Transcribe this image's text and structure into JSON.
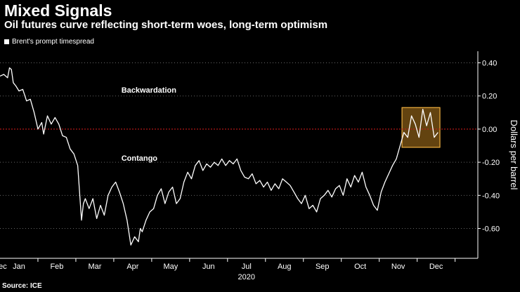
{
  "header": {
    "title": "Mixed Signals",
    "subtitle": "Oil futures curve reflecting short-term woes, long-term optimism"
  },
  "legend": {
    "label": "Brent's prompt timespread"
  },
  "source": "Source: ICE",
  "colors": {
    "line": "#ffffff",
    "zero_line": "#c41a1a",
    "highlight_fill": "#b57a1e",
    "highlight_stroke": "#f0b040",
    "grid": "#666666"
  },
  "chart_data": {
    "type": "line",
    "title": "Mixed Signals",
    "subtitle": "Oil futures curve reflecting short-term woes, long-term optimism",
    "xlabel": "2020",
    "ylabel": "Dollars per barrel",
    "ylim": [
      -0.78,
      0.47
    ],
    "xlim": [
      0,
      12.6
    ],
    "yticks": [
      0.4,
      0.2,
      0.0,
      -0.2,
      -0.4,
      -0.6
    ],
    "ytick_labels": [
      "0.40",
      "0.20",
      "0.00",
      "-0.20",
      "-0.40",
      "-0.60"
    ],
    "xticks": [
      0,
      0.5,
      1.5,
      2.5,
      3.5,
      4.5,
      5.5,
      6.5,
      7.5,
      8.5,
      9.5,
      10.5,
      11.5
    ],
    "xtick_labels": [
      "Dec",
      "Jan",
      "Feb",
      "Mar",
      "Apr",
      "May",
      "Jun",
      "Jul",
      "Aug",
      "Sep",
      "Oct",
      "Nov",
      "Dec"
    ],
    "year_label": "2020",
    "annotations": [
      {
        "text": "Backwardation",
        "x": 3.2,
        "y": 0.22
      },
      {
        "text": "Contango",
        "x": 3.2,
        "y": -0.19
      }
    ],
    "reference_line": {
      "y": 0.0,
      "style": "dotted"
    },
    "highlight_box": {
      "x0": 10.6,
      "x1": 11.6,
      "y0": -0.11,
      "y1": 0.13
    },
    "series": [
      {
        "name": "Brent's prompt timespread",
        "x": [
          0.0,
          0.1,
          0.2,
          0.25,
          0.3,
          0.35,
          0.42,
          0.5,
          0.6,
          0.7,
          0.8,
          0.9,
          1.0,
          1.1,
          1.15,
          1.25,
          1.35,
          1.45,
          1.55,
          1.65,
          1.75,
          1.85,
          1.95,
          2.05,
          2.15,
          2.2,
          2.25,
          2.35,
          2.45,
          2.55,
          2.65,
          2.75,
          2.85,
          2.95,
          3.05,
          3.15,
          3.25,
          3.35,
          3.45,
          3.55,
          3.65,
          3.7,
          3.75,
          3.85,
          3.95,
          4.05,
          4.15,
          4.25,
          4.35,
          4.45,
          4.55,
          4.65,
          4.75,
          4.85,
          4.95,
          5.05,
          5.15,
          5.25,
          5.35,
          5.45,
          5.55,
          5.65,
          5.75,
          5.85,
          5.95,
          6.05,
          6.15,
          6.25,
          6.35,
          6.45,
          6.55,
          6.65,
          6.75,
          6.85,
          6.95,
          7.05,
          7.15,
          7.25,
          7.35,
          7.45,
          7.55,
          7.65,
          7.75,
          7.85,
          7.95,
          8.05,
          8.15,
          8.25,
          8.35,
          8.45,
          8.55,
          8.65,
          8.75,
          8.85,
          8.95,
          9.05,
          9.15,
          9.25,
          9.35,
          9.45,
          9.55,
          9.65,
          9.75,
          9.85,
          9.95,
          10.05,
          10.15,
          10.25,
          10.35,
          10.45,
          10.55,
          10.65,
          10.75,
          10.85,
          10.95,
          11.05,
          11.15,
          11.25,
          11.35,
          11.45,
          11.55
        ],
        "values": [
          0.32,
          0.33,
          0.31,
          0.37,
          0.36,
          0.28,
          0.26,
          0.23,
          0.24,
          0.17,
          0.18,
          0.1,
          0.0,
          0.04,
          -0.03,
          0.08,
          0.03,
          0.07,
          0.03,
          -0.04,
          -0.05,
          -0.12,
          -0.15,
          -0.22,
          -0.55,
          -0.45,
          -0.42,
          -0.48,
          -0.42,
          -0.54,
          -0.46,
          -0.52,
          -0.4,
          -0.35,
          -0.32,
          -0.38,
          -0.45,
          -0.55,
          -0.7,
          -0.65,
          -0.68,
          -0.6,
          -0.62,
          -0.55,
          -0.5,
          -0.48,
          -0.4,
          -0.36,
          -0.45,
          -0.38,
          -0.35,
          -0.45,
          -0.42,
          -0.32,
          -0.26,
          -0.3,
          -0.22,
          -0.19,
          -0.25,
          -0.21,
          -0.23,
          -0.2,
          -0.22,
          -0.18,
          -0.22,
          -0.19,
          -0.21,
          -0.18,
          -0.25,
          -0.29,
          -0.3,
          -0.27,
          -0.33,
          -0.31,
          -0.35,
          -0.32,
          -0.37,
          -0.33,
          -0.36,
          -0.3,
          -0.32,
          -0.34,
          -0.38,
          -0.42,
          -0.45,
          -0.4,
          -0.48,
          -0.46,
          -0.5,
          -0.42,
          -0.4,
          -0.37,
          -0.41,
          -0.36,
          -0.34,
          -0.4,
          -0.3,
          -0.35,
          -0.28,
          -0.32,
          -0.26,
          -0.35,
          -0.4,
          -0.46,
          -0.49,
          -0.38,
          -0.32,
          -0.27,
          -0.22,
          -0.18,
          -0.1,
          -0.02,
          -0.05,
          0.08,
          0.03,
          -0.05,
          0.12,
          0.02,
          0.1,
          -0.05,
          -0.02
        ]
      }
    ]
  }
}
